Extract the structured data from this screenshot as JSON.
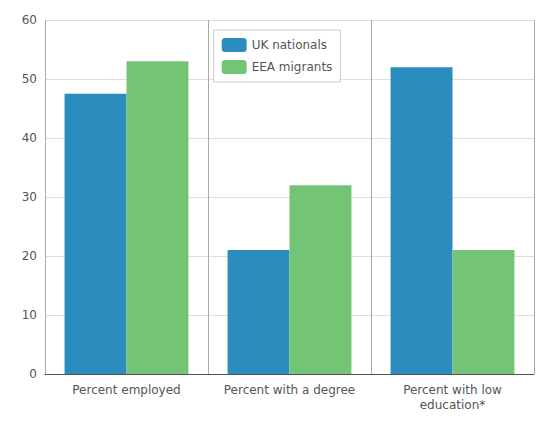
{
  "chart_data": {
    "type": "bar",
    "categories": [
      "Percent employed",
      "Percent with a degree",
      "Percent with low\neducation*"
    ],
    "series": [
      {
        "name": "UK nationals",
        "color": "#2b8cbe",
        "values": [
          47.5,
          21,
          52
        ]
      },
      {
        "name": "EEA migrants",
        "color": "#74c476",
        "values": [
          53,
          32,
          21
        ]
      }
    ],
    "ylim": [
      0,
      60
    ],
    "yticks": [
      0,
      10,
      20,
      30,
      40,
      50,
      60
    ],
    "grid": true,
    "legend": "upper center"
  }
}
